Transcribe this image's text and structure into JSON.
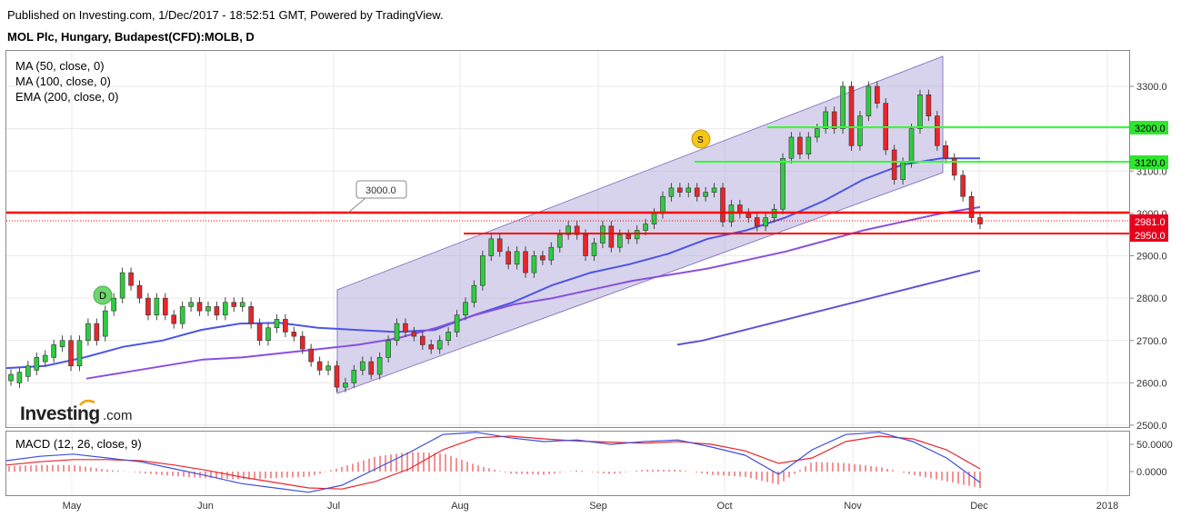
{
  "header": {
    "published": "Published on Investing.com, 1/Dec/2017 - 18:52:51 GMT, Powered by TradingView.",
    "symbol": "MOL Plc, Hungary, Budapest(CFD):MOLB, D"
  },
  "legend": [
    "MA (50, close, 0)",
    "MA (100, close, 0)",
    "EMA (200, close, 0)"
  ],
  "logo": {
    "brand": "Investing",
    "suffix": ".com"
  },
  "markers": {
    "dividend": "D",
    "split": "S",
    "callout": "3000.0"
  },
  "colors": {
    "up": "#2ecc40",
    "down": "#e8262b",
    "ma50": "#4b55e6",
    "ma100": "#8a4fe0",
    "ema200": "#5b52d6",
    "channel": "#b8aedc",
    "support": "#ff0000",
    "resistance": "#33ff33"
  },
  "price_labels": [
    {
      "text": "3200.0",
      "value": 3200,
      "style": "green"
    },
    {
      "text": "3120.0",
      "value": 3120,
      "style": "green"
    },
    {
      "text": "2981.0",
      "value": 2981,
      "style": "red"
    },
    {
      "text": "2950.0",
      "value": 2950,
      "style": "red"
    }
  ],
  "chart_data": {
    "type": "candlestick",
    "x_ticks": [
      "May",
      "Jun",
      "Jul",
      "Aug",
      "Sep",
      "Oct",
      "Nov",
      "Dec",
      "2018"
    ],
    "y_ticks": [
      "3300.0",
      "3200.0",
      "3100.0",
      "3000.0",
      "2900.0",
      "2800.0",
      "2700.0",
      "2600.0",
      "2500.0"
    ],
    "ylim": [
      2500,
      3350
    ],
    "macd": {
      "label": "MACD (12, 26, close, 9)",
      "y_ticks": [
        "50.0000",
        "0.0000"
      ],
      "ylim": [
        -45,
        75
      ],
      "macd_line": [
        20,
        28,
        32,
        25,
        18,
        5,
        -8,
        -22,
        -30,
        -38,
        -25,
        5,
        35,
        68,
        72,
        62,
        55,
        58,
        50,
        55,
        58,
        45,
        30,
        -5,
        40,
        68,
        72,
        55,
        25,
        -20
      ],
      "signal_line": [
        12,
        18,
        22,
        22,
        20,
        12,
        2,
        -10,
        -20,
        -30,
        -32,
        -18,
        5,
        40,
        62,
        65,
        60,
        56,
        54,
        52,
        55,
        50,
        38,
        15,
        25,
        55,
        65,
        60,
        40,
        5
      ]
    },
    "series": {
      "ma50": [
        2635,
        2640,
        2660,
        2685,
        2700,
        2725,
        2740,
        2742,
        2730,
        2725,
        2720,
        2725,
        2760,
        2790,
        2830,
        2860,
        2880,
        2905,
        2940,
        2960,
        2990,
        3030,
        3080,
        3115,
        3130,
        3130
      ],
      "ma100": [
        2610,
        2625,
        2640,
        2655,
        2660,
        2670,
        2680,
        2690,
        2705,
        2730,
        2760,
        2785,
        2800,
        2820,
        2840,
        2855,
        2870,
        2890,
        2910,
        2935,
        2960,
        2980,
        3000,
        3015
      ],
      "ema200": [
        2690,
        2700,
        2715,
        2730,
        2745,
        2760,
        2775,
        2790,
        2805,
        2820,
        2835,
        2850,
        2865
      ]
    },
    "candles": [
      [
        2605,
        2620
      ],
      [
        2600,
        2625
      ],
      [
        2615,
        2640
      ],
      [
        2630,
        2660
      ],
      [
        2650,
        2665
      ],
      [
        2660,
        2690
      ],
      [
        2685,
        2700
      ],
      [
        2700,
        2640
      ],
      [
        2640,
        2700
      ],
      [
        2700,
        2740
      ],
      [
        2740,
        2700
      ],
      [
        2710,
        2770
      ],
      [
        2770,
        2800
      ],
      [
        2800,
        2860
      ],
      [
        2860,
        2830
      ],
      [
        2830,
        2800
      ],
      [
        2800,
        2760
      ],
      [
        2760,
        2800
      ],
      [
        2800,
        2760
      ],
      [
        2760,
        2740
      ],
      [
        2740,
        2780
      ],
      [
        2780,
        2790
      ],
      [
        2790,
        2770
      ],
      [
        2770,
        2780
      ],
      [
        2780,
        2760
      ],
      [
        2760,
        2790
      ],
      [
        2790,
        2780
      ],
      [
        2780,
        2790
      ],
      [
        2780,
        2740
      ],
      [
        2740,
        2700
      ],
      [
        2700,
        2730
      ],
      [
        2730,
        2750
      ],
      [
        2750,
        2720
      ],
      [
        2720,
        2710
      ],
      [
        2710,
        2680
      ],
      [
        2680,
        2650
      ],
      [
        2650,
        2630
      ],
      [
        2630,
        2640
      ],
      [
        2640,
        2590
      ],
      [
        2590,
        2600
      ],
      [
        2600,
        2630
      ],
      [
        2630,
        2650
      ],
      [
        2650,
        2620
      ],
      [
        2620,
        2660
      ],
      [
        2660,
        2700
      ],
      [
        2700,
        2740
      ],
      [
        2740,
        2720
      ],
      [
        2720,
        2710
      ],
      [
        2710,
        2690
      ],
      [
        2690,
        2680
      ],
      [
        2680,
        2700
      ],
      [
        2700,
        2720
      ],
      [
        2720,
        2760
      ],
      [
        2760,
        2790
      ],
      [
        2790,
        2830
      ],
      [
        2830,
        2900
      ],
      [
        2900,
        2940
      ],
      [
        2940,
        2910
      ],
      [
        2910,
        2880
      ],
      [
        2880,
        2910
      ],
      [
        2910,
        2860
      ],
      [
        2860,
        2900
      ],
      [
        2900,
        2890
      ],
      [
        2890,
        2920
      ],
      [
        2920,
        2950
      ],
      [
        2950,
        2970
      ],
      [
        2970,
        2950
      ],
      [
        2950,
        2900
      ],
      [
        2900,
        2930
      ],
      [
        2930,
        2970
      ],
      [
        2970,
        2920
      ],
      [
        2920,
        2950
      ],
      [
        2950,
        2940
      ],
      [
        2940,
        2960
      ],
      [
        2960,
        2975
      ],
      [
        2975,
        3000
      ],
      [
        3000,
        3040
      ],
      [
        3040,
        3060
      ],
      [
        3060,
        3050
      ],
      [
        3050,
        3060
      ],
      [
        3060,
        3040
      ],
      [
        3040,
        3050
      ],
      [
        3050,
        3060
      ],
      [
        3060,
        2980
      ],
      [
        2980,
        3020
      ],
      [
        3020,
        3000
      ],
      [
        3000,
        2990
      ],
      [
        2990,
        2970
      ],
      [
        2970,
        2990
      ],
      [
        2990,
        3010
      ],
      [
        3010,
        3130
      ],
      [
        3130,
        3180
      ],
      [
        3180,
        3140
      ],
      [
        3140,
        3180
      ],
      [
        3180,
        3200
      ],
      [
        3200,
        3240
      ],
      [
        3240,
        3200
      ],
      [
        3200,
        3300
      ],
      [
        3300,
        3160
      ],
      [
        3160,
        3230
      ],
      [
        3230,
        3300
      ],
      [
        3300,
        3260
      ],
      [
        3260,
        3150
      ],
      [
        3150,
        3080
      ],
      [
        3080,
        3120
      ],
      [
        3120,
        3200
      ],
      [
        3200,
        3280
      ],
      [
        3280,
        3230
      ],
      [
        3230,
        3160
      ],
      [
        3160,
        3130
      ],
      [
        3130,
        3090
      ],
      [
        3090,
        3040
      ],
      [
        3040,
        2990
      ],
      [
        2990,
        2975
      ]
    ]
  }
}
